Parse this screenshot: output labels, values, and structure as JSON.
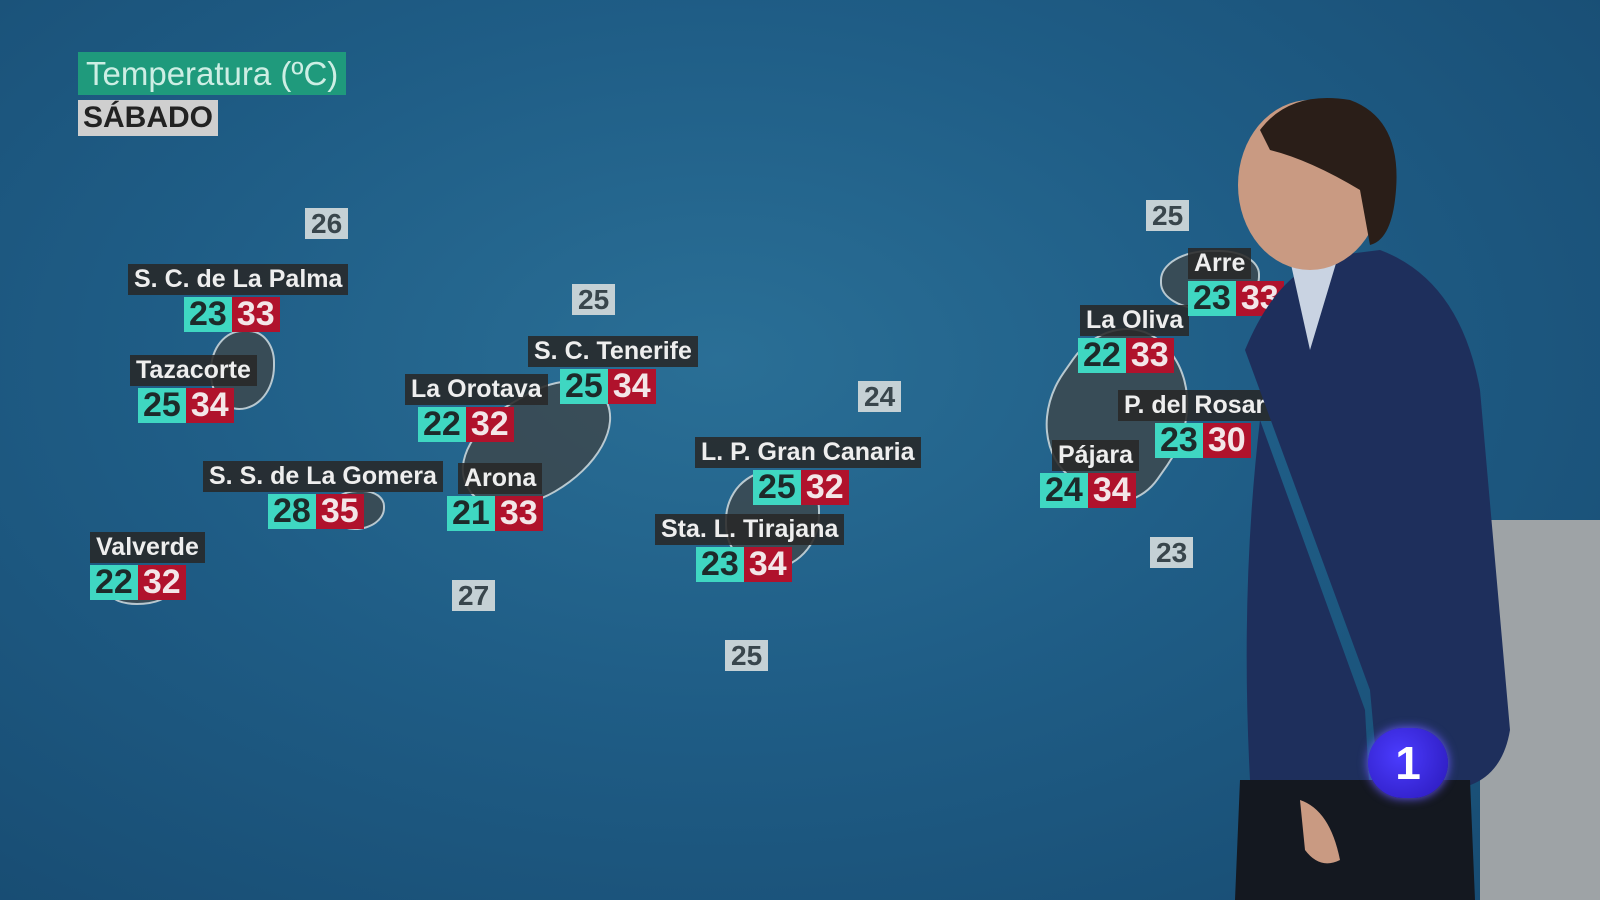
{
  "header": {
    "title": "Temperatura (ºC)",
    "day": "SÁBADO"
  },
  "colors": {
    "min": "#3fd7c2",
    "max": "#b0122c",
    "header": "#1f9a7c",
    "sea": "#c5d1d5"
  },
  "cities": [
    {
      "name": "S. C. de La Palma",
      "min": "23",
      "max": "33"
    },
    {
      "name": "Tazacorte",
      "min": "25",
      "max": "34"
    },
    {
      "name": "S. S. de La Gomera",
      "min": "28",
      "max": "35"
    },
    {
      "name": "Valverde",
      "min": "22",
      "max": "32"
    },
    {
      "name": "La Orotava",
      "min": "22",
      "max": "32"
    },
    {
      "name": "S. C. Tenerife",
      "min": "25",
      "max": "34"
    },
    {
      "name": "Arona",
      "min": "21",
      "max": "33"
    },
    {
      "name": "L. P. Gran Canaria",
      "min": "25",
      "max": "32"
    },
    {
      "name": "Sta. L. Tirajana",
      "min": "23",
      "max": "34"
    },
    {
      "name": "La Oliva",
      "min": "22",
      "max": "33"
    },
    {
      "name": "Arre",
      "min": "23",
      "max": "33"
    },
    {
      "name": "P. del Rosar",
      "min": "23",
      "max": "30"
    },
    {
      "name": "Pájara",
      "min": "24",
      "max": "34"
    }
  ],
  "sea_temps": [
    "26",
    "25",
    "24",
    "27",
    "25",
    "25",
    "23"
  ],
  "channel_logo": "1"
}
